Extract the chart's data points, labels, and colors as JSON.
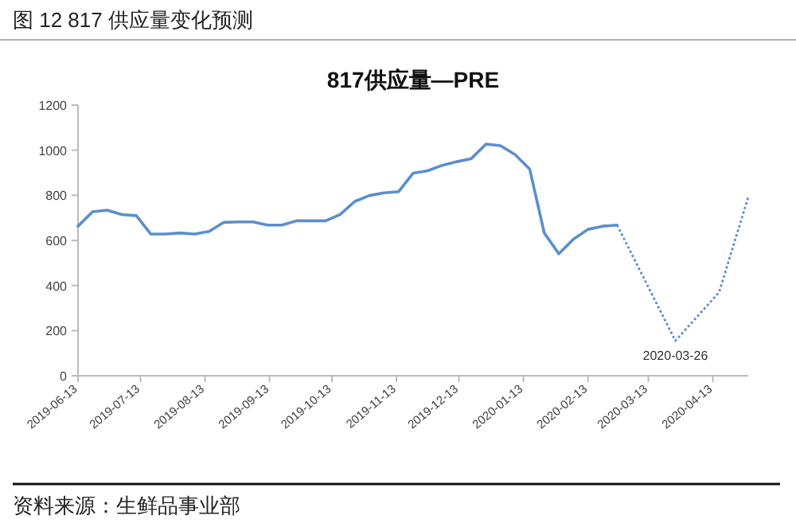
{
  "chart_data": {
    "type": "line",
    "title": "图 12 817 供应量变化预测",
    "subtitle": "817供应量—PRE",
    "xlim": [
      "2019-06-13",
      "2020-04-30"
    ],
    "xticks": [
      "2019-06-13",
      "2019-07-13",
      "2019-08-13",
      "2019-09-13",
      "2019-10-13",
      "2019-11-13",
      "2019-12-13",
      "2020-01-13",
      "2020-02-13",
      "2020-03-13",
      "2020-04-13"
    ],
    "ylim": [
      0,
      1200
    ],
    "yticks": [
      0,
      200,
      400,
      600,
      800,
      1000,
      1200
    ],
    "grid": false,
    "series": [
      {
        "color": "#5b8fcc",
        "line_style": "solid",
        "x": [
          "2019-06-13",
          "2019-06-20",
          "2019-06-27",
          "2019-07-04",
          "2019-07-11",
          "2019-07-18",
          "2019-07-25",
          "2019-08-01",
          "2019-08-08",
          "2019-08-15",
          "2019-08-22",
          "2019-08-29",
          "2019-09-05",
          "2019-09-12",
          "2019-09-19",
          "2019-09-26",
          "2019-10-03",
          "2019-10-10",
          "2019-10-17",
          "2019-10-24",
          "2019-10-31",
          "2019-11-07",
          "2019-11-14",
          "2019-11-21",
          "2019-11-28",
          "2019-12-05",
          "2019-12-12",
          "2019-12-19",
          "2019-12-26",
          "2020-01-02",
          "2020-01-09",
          "2020-01-16",
          "2020-01-23",
          "2020-01-30",
          "2020-02-06",
          "2020-02-13",
          "2020-02-20",
          "2020-02-27"
        ],
        "values": [
          663,
          727,
          734,
          715,
          710,
          628,
          628,
          633,
          628,
          640,
          680,
          682,
          682,
          668,
          668,
          687,
          687,
          687,
          715,
          773,
          799,
          811,
          816,
          898,
          909,
          933,
          949,
          963,
          1027,
          1020,
          980,
          916,
          633,
          541,
          605,
          649,
          663,
          668
        ]
      },
      {
        "color": "#5b8fcc",
        "line_style": "dotted",
        "x": [
          "2020-02-27",
          "2020-03-26",
          "2020-04-16",
          "2020-04-30"
        ],
        "values": [
          668,
          155,
          370,
          792
        ]
      }
    ],
    "annotations": [
      "资料来源：生鲜品事业部",
      {
        "text": "2020-03-26",
        "x": "2020-03-26",
        "y": 155
      }
    ]
  }
}
